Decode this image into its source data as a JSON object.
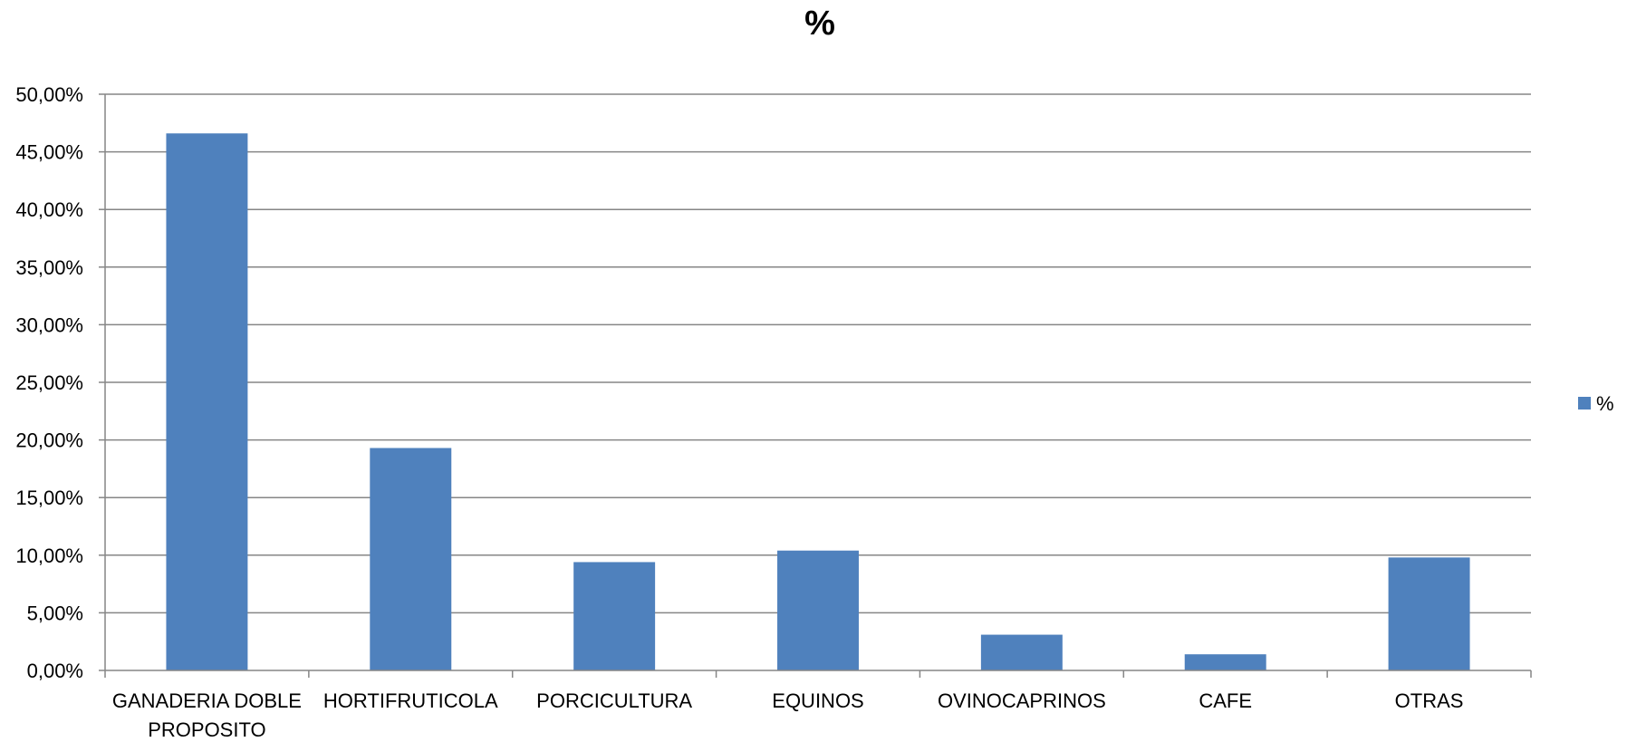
{
  "chart_data": {
    "type": "bar",
    "title": "%",
    "categories": [
      [
        "GANADERIA DOBLE",
        "PROPOSITO"
      ],
      [
        "HORTIFRUTICOLA"
      ],
      [
        "PORCICULTURA"
      ],
      [
        "EQUINOS"
      ],
      [
        "OVINOCAPRINOS"
      ],
      [
        "CAFE"
      ],
      [
        "OTRAS"
      ]
    ],
    "series": [
      {
        "name": "%",
        "values": [
          46.6,
          19.3,
          9.4,
          10.4,
          3.1,
          1.4,
          9.8
        ]
      }
    ],
    "ylim": [
      0,
      50
    ],
    "yticks": [
      "0,00%",
      "5,00%",
      "10,00%",
      "15,00%",
      "20,00%",
      "25,00%",
      "30,00%",
      "35,00%",
      "40,00%",
      "45,00%",
      "50,00%"
    ],
    "xlabel": "",
    "ylabel": "",
    "grid": true,
    "legend_position": "right",
    "colors": {
      "bar": "#4F81BD",
      "grid": "#868686",
      "axis": "#868686"
    }
  }
}
